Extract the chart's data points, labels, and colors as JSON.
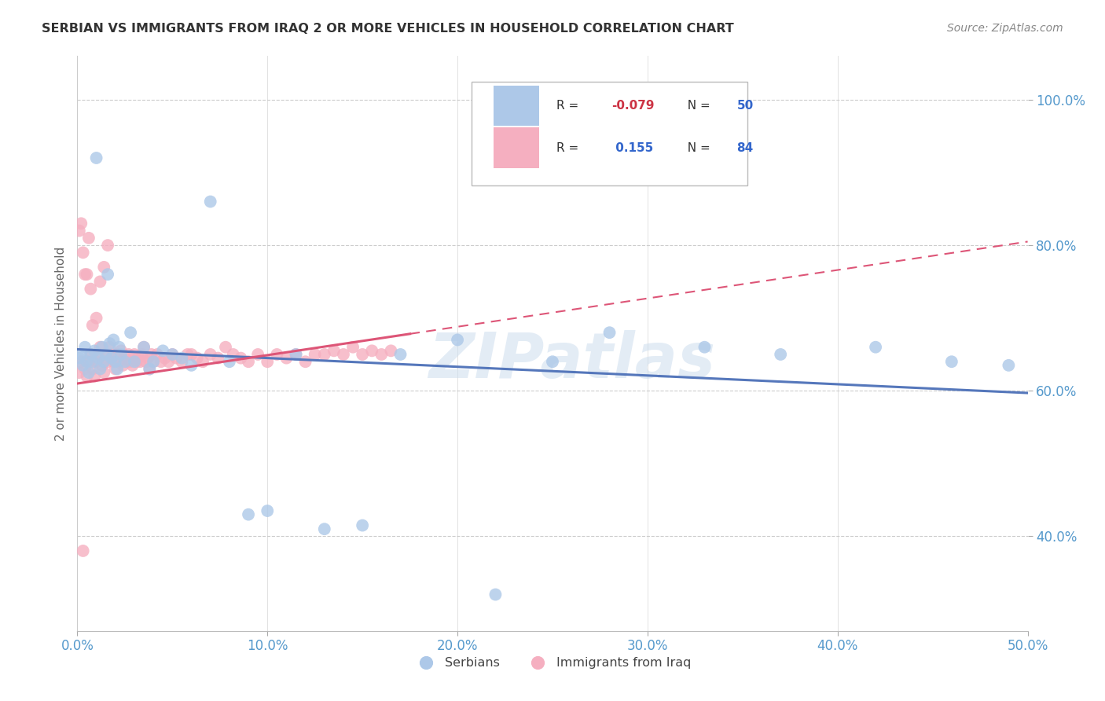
{
  "title": "SERBIAN VS IMMIGRANTS FROM IRAQ 2 OR MORE VEHICLES IN HOUSEHOLD CORRELATION CHART",
  "source": "Source: ZipAtlas.com",
  "ylabel": "2 or more Vehicles in Household",
  "xlim": [
    0.0,
    0.5
  ],
  "ylim": [
    0.27,
    1.06
  ],
  "xtick_values": [
    0.0,
    0.1,
    0.2,
    0.3,
    0.4,
    0.5
  ],
  "ytick_values": [
    0.4,
    0.6,
    0.8,
    1.0
  ],
  "legend_serbian_label": "Serbians",
  "legend_iraq_label": "Immigrants from Iraq",
  "color_serbian": "#adc8e8",
  "color_iraq": "#f5afc0",
  "color_serbian_line": "#5577bb",
  "color_iraq_line": "#dd5577",
  "watermark": "ZIPatlas",
  "serbian_x": [
    0.001,
    0.002,
    0.003,
    0.004,
    0.005,
    0.006,
    0.007,
    0.008,
    0.009,
    0.01,
    0.011,
    0.012,
    0.013,
    0.014,
    0.015,
    0.016,
    0.017,
    0.018,
    0.019,
    0.02,
    0.021,
    0.022,
    0.023,
    0.025,
    0.028,
    0.03,
    0.035,
    0.038,
    0.04,
    0.045,
    0.05,
    0.055,
    0.06,
    0.07,
    0.08,
    0.09,
    0.1,
    0.115,
    0.13,
    0.15,
    0.17,
    0.2,
    0.22,
    0.25,
    0.28,
    0.33,
    0.37,
    0.42,
    0.46,
    0.49
  ],
  "serbian_y": [
    0.645,
    0.65,
    0.635,
    0.66,
    0.64,
    0.625,
    0.65,
    0.64,
    0.655,
    0.92,
    0.645,
    0.63,
    0.66,
    0.64,
    0.65,
    0.76,
    0.665,
    0.645,
    0.67,
    0.64,
    0.63,
    0.66,
    0.65,
    0.64,
    0.68,
    0.64,
    0.66,
    0.63,
    0.64,
    0.655,
    0.65,
    0.645,
    0.635,
    0.86,
    0.64,
    0.43,
    0.435,
    0.65,
    0.41,
    0.415,
    0.65,
    0.67,
    0.32,
    0.64,
    0.68,
    0.66,
    0.65,
    0.66,
    0.64,
    0.635
  ],
  "iraq_x": [
    0.001,
    0.002,
    0.003,
    0.004,
    0.005,
    0.006,
    0.007,
    0.008,
    0.009,
    0.01,
    0.011,
    0.012,
    0.013,
    0.014,
    0.015,
    0.016,
    0.017,
    0.018,
    0.019,
    0.02,
    0.021,
    0.022,
    0.023,
    0.024,
    0.025,
    0.026,
    0.027,
    0.028,
    0.029,
    0.03,
    0.031,
    0.032,
    0.033,
    0.034,
    0.035,
    0.036,
    0.037,
    0.038,
    0.039,
    0.04,
    0.042,
    0.044,
    0.046,
    0.048,
    0.05,
    0.052,
    0.055,
    0.058,
    0.06,
    0.063,
    0.066,
    0.07,
    0.074,
    0.078,
    0.082,
    0.086,
    0.09,
    0.095,
    0.1,
    0.105,
    0.11,
    0.115,
    0.12,
    0.125,
    0.13,
    0.135,
    0.14,
    0.145,
    0.15,
    0.155,
    0.16,
    0.165,
    0.002,
    0.004,
    0.006,
    0.008,
    0.01,
    0.012,
    0.014,
    0.016,
    0.001,
    0.003,
    0.005,
    0.007
  ],
  "iraq_y": [
    0.625,
    0.64,
    0.38,
    0.63,
    0.62,
    0.64,
    0.65,
    0.63,
    0.62,
    0.64,
    0.65,
    0.66,
    0.635,
    0.625,
    0.65,
    0.64,
    0.66,
    0.645,
    0.64,
    0.63,
    0.65,
    0.64,
    0.655,
    0.635,
    0.645,
    0.64,
    0.65,
    0.64,
    0.635,
    0.65,
    0.64,
    0.645,
    0.64,
    0.65,
    0.66,
    0.64,
    0.645,
    0.63,
    0.65,
    0.64,
    0.65,
    0.64,
    0.645,
    0.64,
    0.65,
    0.645,
    0.64,
    0.65,
    0.65,
    0.645,
    0.64,
    0.65,
    0.645,
    0.66,
    0.65,
    0.645,
    0.64,
    0.65,
    0.64,
    0.65,
    0.645,
    0.65,
    0.64,
    0.65,
    0.65,
    0.655,
    0.65,
    0.66,
    0.65,
    0.655,
    0.65,
    0.655,
    0.83,
    0.76,
    0.81,
    0.69,
    0.7,
    0.75,
    0.77,
    0.8,
    0.82,
    0.79,
    0.76,
    0.74
  ]
}
